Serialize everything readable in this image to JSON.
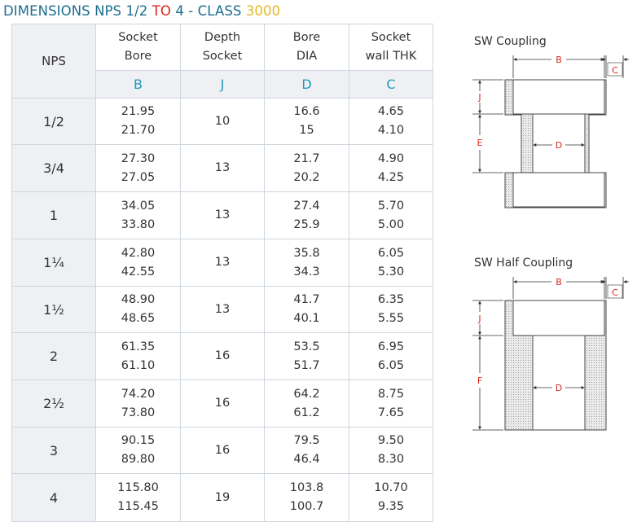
{
  "title": {
    "part1": "DIMENSIONS NPS 1/2 ",
    "part2": "TO",
    "part3": " 4 - CLASS ",
    "part4": "3000"
  },
  "table": {
    "headers": [
      {
        "line1": "NPS",
        "line2": ""
      },
      {
        "line1": "Socket",
        "line2": "Bore"
      },
      {
        "line1": "Depth",
        "line2": "Socket"
      },
      {
        "line1": "Bore",
        "line2": "DIA"
      },
      {
        "line1": "Socket",
        "line2": "wall THK"
      }
    ],
    "symbols": [
      "B",
      "J",
      "D",
      "C"
    ],
    "rows": [
      {
        "nps": "1/2",
        "b1": "21.95",
        "b2": "21.70",
        "j": "10",
        "d1": "16.6",
        "d2": "15",
        "c1": "4.65",
        "c2": "4.10"
      },
      {
        "nps": "3/4",
        "b1": "27.30",
        "b2": "27.05",
        "j": "13",
        "d1": "21.7",
        "d2": "20.2",
        "c1": "4.90",
        "c2": "4.25"
      },
      {
        "nps": "1",
        "b1": "34.05",
        "b2": "33.80",
        "j": "13",
        "d1": "27.4",
        "d2": "25.9",
        "c1": "5.70",
        "c2": "5.00"
      },
      {
        "nps": "1¼",
        "b1": "42.80",
        "b2": "42.55",
        "j": "13",
        "d1": "35.8",
        "d2": "34.3",
        "c1": "6.05",
        "c2": "5.30"
      },
      {
        "nps": "1½",
        "b1": "48.90",
        "b2": "48.65",
        "j": "13",
        "d1": "41.7",
        "d2": "40.1",
        "c1": "6.35",
        "c2": "5.55"
      },
      {
        "nps": "2",
        "b1": "61.35",
        "b2": "61.10",
        "j": "16",
        "d1": "53.5",
        "d2": "51.7",
        "c1": "6.95",
        "c2": "6.05"
      },
      {
        "nps": "2½",
        "b1": "74.20",
        "b2": "73.80",
        "j": "16",
        "d1": "64.2",
        "d2": "61.2",
        "c1": "8.75",
        "c2": "7.65"
      },
      {
        "nps": "3",
        "b1": "90.15",
        "b2": "89.80",
        "j": "16",
        "d1": "79.5",
        "d2": "46.4",
        "c1": "9.50",
        "c2": "8.30"
      },
      {
        "nps": "4",
        "b1": "115.80",
        "b2": "115.45",
        "j": "19",
        "d1": "103.8",
        "d2": "100.7",
        "c1": "10.70",
        "c2": "9.35"
      }
    ]
  },
  "diagrams": {
    "coupling": {
      "title": "SW Coupling",
      "labels": {
        "b": "B",
        "c": "C",
        "j": "J",
        "e": "E",
        "d": "D"
      }
    },
    "half_coupling": {
      "title": "SW Half Coupling",
      "labels": {
        "b": "B",
        "c": "C",
        "j": "J",
        "f": "F",
        "d": "D"
      }
    }
  },
  "colors": {
    "title_blue": "#1a6e8e",
    "title_red": "#d9261c",
    "title_yellow": "#e8b820",
    "symbol": "#2299bb",
    "dim_label": "#d9261c"
  }
}
